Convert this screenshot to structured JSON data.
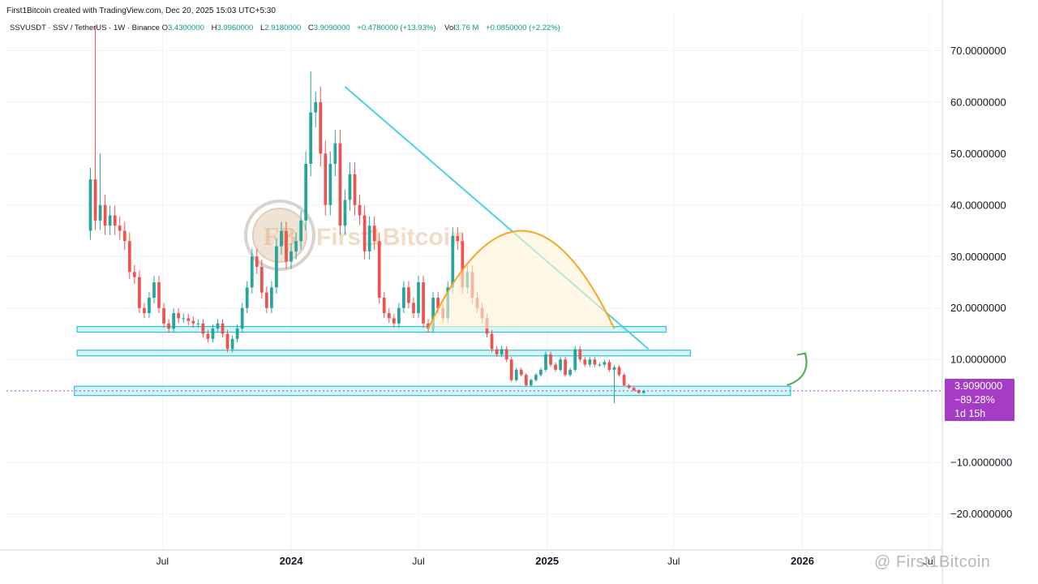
{
  "attribution": "First1Bitcoin created with TradingView.com, Dec 20, 2025 15:03 UTC+5:30",
  "legend": {
    "symbol": "SSVUSDT · SSV / TetherUS · 1W · Binance",
    "o_label": "O",
    "o": "3.4300000",
    "h_label": "H",
    "h": "3.9960000",
    "l_label": "L",
    "l": "2.9180000",
    "c_label": "C",
    "c": "3.9090000",
    "change": "+0.4780000 (+13.93%)",
    "vol_label": "Vol",
    "vol": "3.76 M",
    "vol_change": "+0.0850000 (+2.22%)"
  },
  "price_label": {
    "price": "3.9090000",
    "pct": "−89.28%",
    "countdown": "1d 15h"
  },
  "watermark": {
    "center": "First1Bitcoin",
    "footer": "@ First1Bitcoin"
  },
  "colors": {
    "up": "#26a69a",
    "down": "#ef5350",
    "trendline": "#4dd0e1",
    "arc": "#f5a623",
    "zone_fill": "#b2ebf2",
    "zone_stroke": "#26c6da",
    "arrow": "#4caf50",
    "price_label_bg": "#a63cc6"
  },
  "chart_data": {
    "type": "candlestick",
    "interval": "1W",
    "y_ticks": [
      {
        "value": 70,
        "label": "70.0000000"
      },
      {
        "value": 60,
        "label": "60.0000000"
      },
      {
        "value": 50,
        "label": "50.0000000"
      },
      {
        "value": 40,
        "label": "40.0000000"
      },
      {
        "value": 30,
        "label": "30.0000000"
      },
      {
        "value": 20,
        "label": "20.0000000"
      },
      {
        "value": 10,
        "label": "10.0000000"
      },
      {
        "value": -10,
        "label": "−10.0000000"
      },
      {
        "value": -20,
        "label": "−20.0000000"
      }
    ],
    "ylim": [
      -27,
      77
    ],
    "x_ticks": [
      {
        "date": "2023-07-01",
        "label": "Jul",
        "bold": false
      },
      {
        "date": "2024-01-01",
        "label": "2024",
        "bold": true
      },
      {
        "date": "2024-07-01",
        "label": "Jul",
        "bold": false
      },
      {
        "date": "2025-01-01",
        "label": "2025",
        "bold": true
      },
      {
        "date": "2025-07-01",
        "label": "Jul",
        "bold": false
      },
      {
        "date": "2026-01-01",
        "label": "2026",
        "bold": true
      },
      {
        "date": "2026-07-01",
        "label": "Jul",
        "bold": false
      }
    ],
    "xlim": [
      "2022-11-20",
      "2026-07-20"
    ],
    "anchor_date": "2023-03-20",
    "start_price": 35,
    "close_path": [
      45,
      37,
      40,
      36,
      38,
      36,
      35,
      33,
      27,
      26,
      20,
      19,
      22,
      25,
      20,
      17,
      16,
      19,
      18,
      18,
      17.5,
      17,
      17,
      15,
      14,
      16,
      17,
      15,
      12,
      14,
      16,
      20,
      24,
      30,
      28,
      23,
      20,
      24,
      32,
      35,
      29,
      31,
      33,
      37,
      48,
      58,
      60,
      50,
      40,
      48,
      52,
      36,
      41,
      46,
      40,
      38,
      31,
      36,
      33,
      22,
      19,
      18,
      17,
      20,
      24,
      21,
      19,
      25,
      17,
      16,
      22,
      20,
      18,
      24,
      34,
      33,
      24,
      27,
      22,
      20,
      18,
      15,
      12,
      11,
      12,
      10,
      6,
      8,
      7,
      5,
      6,
      7,
      8,
      11,
      9,
      8,
      10,
      7,
      8,
      12,
      10,
      9,
      10,
      9,
      9,
      9.5,
      8,
      8.5,
      7,
      5,
      4.5,
      4,
      3.5,
      3.9
    ],
    "spikes": [
      {
        "index": 1,
        "high": 75
      },
      {
        "index": 2,
        "high": 50
      },
      {
        "index": 45,
        "high": 66
      },
      {
        "index": 46,
        "high": 62
      },
      {
        "index": 107,
        "low": 1.5
      }
    ],
    "current_price": 3.909,
    "annotations": {
      "trendline": {
        "from": {
          "date": "2024-03-18",
          "price": 63
        },
        "to": {
          "date": "2025-05-26",
          "price": 12
        }
      },
      "arc": {
        "from_date": "2024-07-15",
        "peak_date": "2024-11-25",
        "to_date": "2025-04-07",
        "base_price": 16,
        "peak_price": 35
      },
      "zones": [
        {
          "from_date": "2023-03-01",
          "to_date": "2025-06-20",
          "low": 15.3,
          "high": 16.4
        },
        {
          "from_date": "2023-03-01",
          "to_date": "2025-07-25",
          "low": 10.7,
          "high": 11.8
        },
        {
          "from_date": "2023-02-25",
          "to_date": "2025-12-15",
          "low": 3.0,
          "high": 4.8
        }
      ],
      "arrow": {
        "from": {
          "date": "2025-12-10",
          "price": 5.0
        },
        "to": {
          "date": "2026-01-05",
          "price": 11.2
        }
      }
    }
  }
}
